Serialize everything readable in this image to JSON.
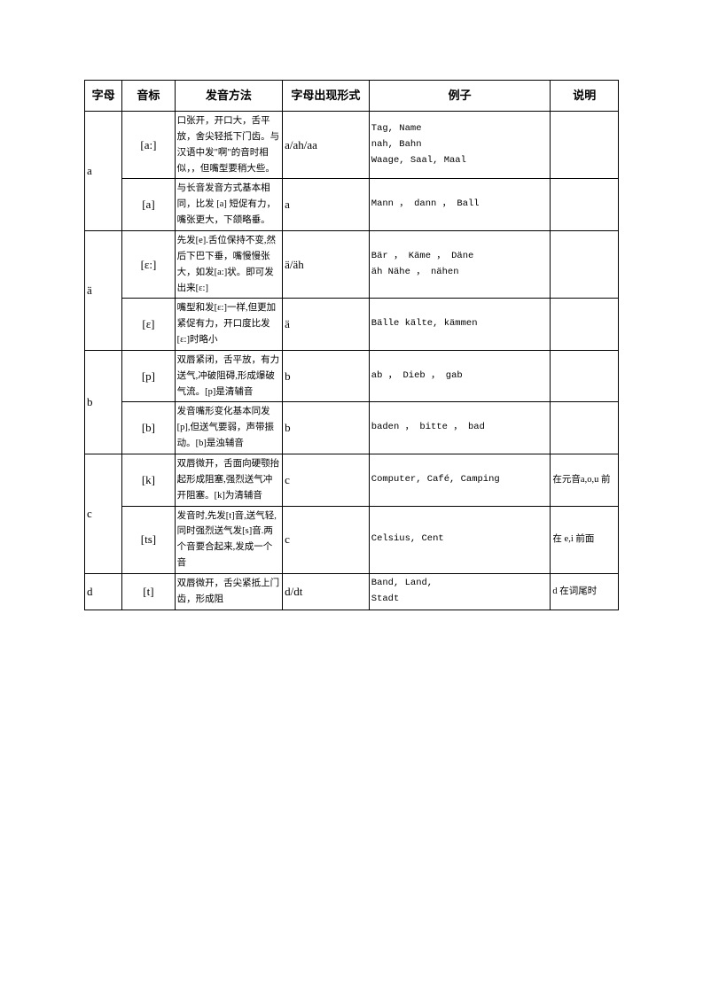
{
  "headers": {
    "letter": "字母",
    "ipa": "音标",
    "method": "发音方法",
    "form": "字母出现形式",
    "example": "例子",
    "note": "说明"
  },
  "rows": [
    {
      "letter": "a",
      "letter_rowspan": 2,
      "sub": [
        {
          "ipa": "[a:]",
          "method": "口张开，开口大，舌平放，舍尖轻抵下门齿。与汉语中发\"啊\"的音时相似，，但嘴型要稍大些。",
          "form": "a/ah/aa",
          "example": "Tag, Name\nnah, Bahn\nWaage, Saal, Maal",
          "note": ""
        },
        {
          "ipa": "[a]",
          "method": "与长音发音方式基本相同，比发 [a] 短促有力，嘴张更大，下颌略垂。",
          "form": "a",
          "example": "Mann ， dann ， Ball",
          "note": ""
        }
      ]
    },
    {
      "letter": "ä",
      "letter_rowspan": 2,
      "sub": [
        {
          "ipa": "[ε:]",
          "method": "先发[e].舌位保持不变,然后下巴下垂，嘴慢慢张大，如发[a:]状。即可发出来[ε:]",
          "form": "ä/äh",
          "example": "Bär ， Käme ， Däne\näh Nähe ， nähen",
          "note": ""
        },
        {
          "ipa": "[ε]",
          "method": "嘴型和发[ε:]一样,但更加紧促有力，开口度比发[ε:]时略小",
          "form": "ä",
          "example": "Bälle kälte, kämmen",
          "note": ""
        }
      ]
    },
    {
      "letter": "b",
      "letter_rowspan": 2,
      "sub": [
        {
          "ipa": "[p]",
          "method": "双唇紧闭，舌平放，有力送气,冲破阻碍,形成爆破气流。[p]是清辅音",
          "form": "b",
          "example": "ab ， Dieb ， gab",
          "note": ""
        },
        {
          "ipa": "[b]",
          "method": "发音嘴形变化基本同发[p],但送气要弱，声带振动。[b]是浊辅音",
          "form": "b",
          "example": "baden ， bitte ， bad",
          "note": ""
        }
      ]
    },
    {
      "letter": "c",
      "letter_rowspan": 2,
      "sub": [
        {
          "ipa": "[k]",
          "method": "双唇微开，舌面向硬颚抬起形成阻塞,强烈送气冲开阻塞。[k]为清辅音",
          "form": "c",
          "example": "Computer, Café, Camping",
          "note": "在元音a,o,u 前"
        },
        {
          "ipa": "[ts]",
          "method": "发音时,先发[t]音,送气轻,同时强烈送气发[s]音.两个音要合起来,发成一个音",
          "form": "c",
          "example": "Celsius, Cent",
          "note": "在 e,i 前面"
        }
      ]
    },
    {
      "letter": "d",
      "letter_rowspan": 1,
      "sub": [
        {
          "ipa": "[t]",
          "method": "双唇微开，舌尖紧抵上门齿，形成阻",
          "form": "d/dt",
          "example": "Band, Land,\nStadt",
          "note": "d 在词尾时"
        }
      ]
    }
  ]
}
